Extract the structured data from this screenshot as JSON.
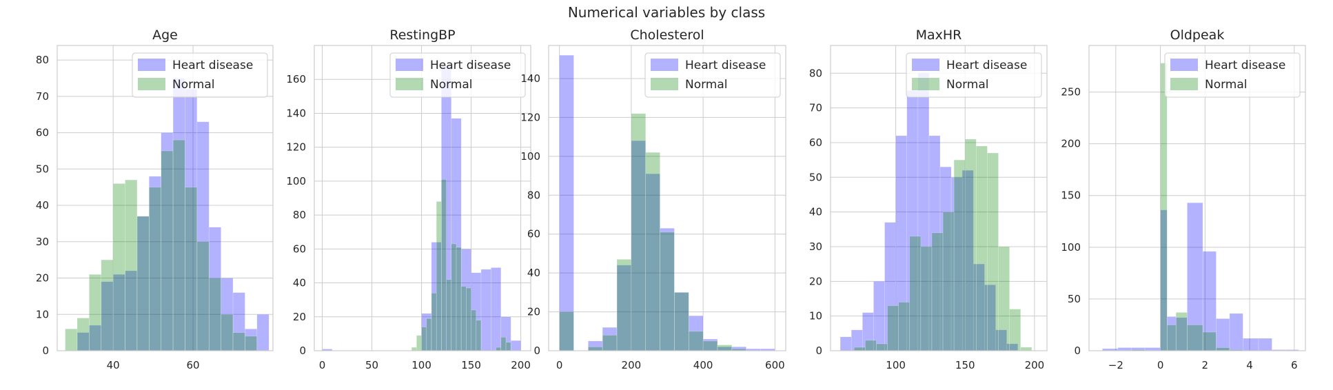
{
  "suptitle": "Numerical variables by class",
  "colors": {
    "heart_disease": "#0000ff",
    "normal": "#008000",
    "grid": "#cccccc",
    "frame": "#cccccc",
    "bar_alpha": "0.3"
  },
  "chart_data": [
    {
      "type": "histogram",
      "title": "Age",
      "xlim": [
        26,
        80
      ],
      "ylim": [
        0,
        84
      ],
      "xticks": [
        40,
        60
      ],
      "yticks": [
        0,
        10,
        20,
        30,
        40,
        50,
        60,
        70,
        80
      ],
      "legend": "top-right",
      "grid": true,
      "series": [
        {
          "name": "Heart disease",
          "bins": [
            [
              31,
              34,
              5
            ],
            [
              34,
              37,
              7
            ],
            [
              37,
              40,
              19
            ],
            [
              40,
              43,
              21
            ],
            [
              43,
              46,
              22
            ],
            [
              46,
              49,
              37
            ],
            [
              49,
              52,
              48
            ],
            [
              52,
              55,
              60
            ],
            [
              55,
              58,
              75
            ],
            [
              58,
              61,
              72
            ],
            [
              61,
              64,
              63
            ],
            [
              64,
              67,
              34
            ],
            [
              67,
              70,
              20
            ],
            [
              70,
              73,
              16
            ],
            [
              73,
              76,
              6
            ],
            [
              76,
              79,
              10
            ]
          ]
        },
        {
          "name": "Normal",
          "bins": [
            [
              28,
              31,
              6
            ],
            [
              31,
              34,
              9
            ],
            [
              34,
              37,
              21
            ],
            [
              37,
              40,
              25
            ],
            [
              40,
              43,
              46
            ],
            [
              43,
              46,
              47
            ],
            [
              46,
              49,
              37
            ],
            [
              49,
              52,
              45
            ],
            [
              52,
              55,
              55
            ],
            [
              55,
              58,
              58
            ],
            [
              58,
              61,
              45
            ],
            [
              61,
              64,
              30
            ],
            [
              64,
              67,
              20
            ],
            [
              67,
              70,
              10
            ],
            [
              70,
              73,
              5
            ],
            [
              73,
              76,
              4
            ]
          ]
        }
      ]
    },
    {
      "type": "histogram",
      "title": "RestingBP",
      "xlim": [
        -8,
        210
      ],
      "ylim": [
        0,
        180
      ],
      "xticks": [
        0,
        50,
        100,
        150,
        200
      ],
      "yticks": [
        0,
        20,
        40,
        60,
        80,
        100,
        120,
        140,
        160
      ],
      "legend": "top-right",
      "grid": true,
      "series": [
        {
          "name": "Heart disease",
          "bins": [
            [
              0,
              10,
              1
            ],
            [
              100,
              110,
              22
            ],
            [
              110,
              120,
              64
            ],
            [
              120,
              130,
              168
            ],
            [
              130,
              140,
              137
            ],
            [
              140,
              150,
              60
            ],
            [
              150,
              160,
              46
            ],
            [
              160,
              170,
              48
            ],
            [
              170,
              180,
              49
            ],
            [
              180,
              190,
              20
            ],
            [
              190,
              200,
              6
            ]
          ]
        },
        {
          "name": "Normal",
          "bins": [
            [
              90,
              95,
              2
            ],
            [
              95,
              100,
              9
            ],
            [
              100,
              105,
              14
            ],
            [
              105,
              110,
              19
            ],
            [
              110,
              115,
              34
            ],
            [
              115,
              120,
              88
            ],
            [
              120,
              125,
              101
            ],
            [
              125,
              130,
              42
            ],
            [
              130,
              135,
              63
            ],
            [
              135,
              140,
              61
            ],
            [
              140,
              145,
              38
            ],
            [
              145,
              150,
              37
            ],
            [
              150,
              155,
              24
            ],
            [
              155,
              160,
              18
            ],
            [
              175,
              180,
              2
            ],
            [
              180,
              185,
              8
            ],
            [
              185,
              190,
              5
            ]
          ]
        }
      ]
    },
    {
      "type": "histogram",
      "title": "Cholesterol",
      "xlim": [
        -30,
        630
      ],
      "ylim": [
        0,
        157
      ],
      "xticks": [
        0,
        200,
        400,
        600
      ],
      "yticks": [
        0,
        20,
        40,
        60,
        80,
        100,
        120,
        140
      ],
      "legend": "top-right",
      "grid": true,
      "series": [
        {
          "name": "Heart disease",
          "bins": [
            [
              0,
              40,
              152
            ],
            [
              80,
              120,
              5
            ],
            [
              120,
              160,
              12
            ],
            [
              160,
              200,
              44
            ],
            [
              200,
              240,
              108
            ],
            [
              240,
              280,
              91
            ],
            [
              280,
              320,
              63
            ],
            [
              320,
              360,
              30
            ],
            [
              360,
              400,
              18
            ],
            [
              400,
              440,
              6
            ],
            [
              440,
              480,
              2
            ],
            [
              480,
              520,
              2
            ],
            [
              520,
              560,
              1
            ],
            [
              560,
              600,
              1
            ]
          ]
        },
        {
          "name": "Normal",
          "bins": [
            [
              0,
              40,
              20
            ],
            [
              80,
              120,
              2
            ],
            [
              120,
              160,
              8
            ],
            [
              160,
              200,
              47
            ],
            [
              200,
              240,
              122
            ],
            [
              240,
              280,
              102
            ],
            [
              280,
              320,
              61
            ],
            [
              320,
              360,
              30
            ],
            [
              360,
              400,
              10
            ],
            [
              400,
              440,
              5
            ],
            [
              440,
              480,
              3
            ],
            [
              480,
              520,
              1
            ]
          ]
        }
      ]
    },
    {
      "type": "histogram",
      "title": "MaxHR",
      "xlim": [
        53,
        209
      ],
      "ylim": [
        0,
        88
      ],
      "xticks": [
        100,
        150,
        200
      ],
      "yticks": [
        0,
        10,
        20,
        30,
        40,
        50,
        60,
        70,
        80
      ],
      "legend": "top-right",
      "grid": true,
      "series": [
        {
          "name": "Heart disease",
          "bins": [
            [
              60,
              68,
              4
            ],
            [
              68,
              76,
              6
            ],
            [
              76,
              84,
              11
            ],
            [
              84,
              92,
              20
            ],
            [
              92,
              100,
              37
            ],
            [
              100,
              108,
              62
            ],
            [
              108,
              116,
              75
            ],
            [
              116,
              124,
              80
            ],
            [
              124,
              132,
              62
            ],
            [
              132,
              140,
              53
            ],
            [
              140,
              148,
              50
            ],
            [
              148,
              156,
              52
            ],
            [
              156,
              164,
              25
            ],
            [
              164,
              172,
              19
            ],
            [
              172,
              180,
              6
            ],
            [
              180,
              188,
              2
            ]
          ]
        },
        {
          "name": "Normal",
          "bins": [
            [
              70,
              78,
              1
            ],
            [
              78,
              86,
              3
            ],
            [
              86,
              94,
              2
            ],
            [
              94,
              102,
              13
            ],
            [
              102,
              110,
              14
            ],
            [
              110,
              118,
              33
            ],
            [
              118,
              126,
              30
            ],
            [
              126,
              134,
              34
            ],
            [
              134,
              142,
              40
            ],
            [
              142,
              150,
              55
            ],
            [
              150,
              158,
              61
            ],
            [
              158,
              166,
              59
            ],
            [
              166,
              174,
              57
            ],
            [
              174,
              182,
              30
            ],
            [
              182,
              190,
              12
            ],
            [
              190,
              198,
              1
            ]
          ]
        }
      ]
    },
    {
      "type": "histogram",
      "title": "Oldpeak",
      "xlim": [
        -3.2,
        6.5
      ],
      "ylim": [
        0,
        295
      ],
      "xticks": [
        -2,
        0,
        2,
        4,
        6
      ],
      "yticks": [
        0,
        50,
        100,
        150,
        200,
        250
      ],
      "legend": "top-right",
      "grid": true,
      "series": [
        {
          "name": "Heart disease",
          "bins": [
            [
              -2.6,
              -1.9,
              2
            ],
            [
              -1.9,
              -1.3,
              3
            ],
            [
              -1.3,
              -0.7,
              3
            ],
            [
              -0.7,
              0,
              3
            ],
            [
              0,
              0.3,
              136
            ],
            [
              0.3,
              0.7,
              33
            ],
            [
              0.7,
              1.2,
              32
            ],
            [
              1.2,
              1.9,
              143
            ],
            [
              1.9,
              2.5,
              96
            ],
            [
              2.5,
              3.1,
              31
            ],
            [
              3.1,
              3.7,
              36
            ],
            [
              3.7,
              4.4,
              12
            ],
            [
              4.4,
              5,
              12
            ],
            [
              5,
              5.6,
              1
            ],
            [
              5.6,
              6.2,
              1
            ]
          ]
        },
        {
          "name": "Normal",
          "bins": [
            [
              -1.3,
              -0.7,
              1
            ],
            [
              0,
              0.3,
              278
            ],
            [
              0.3,
              0.7,
              25
            ],
            [
              0.7,
              1.2,
              37
            ],
            [
              1.2,
              1.9,
              25
            ],
            [
              1.9,
              2.5,
              18
            ],
            [
              2.5,
              3.1,
              3
            ],
            [
              3.1,
              3.7,
              1
            ]
          ]
        }
      ]
    }
  ]
}
